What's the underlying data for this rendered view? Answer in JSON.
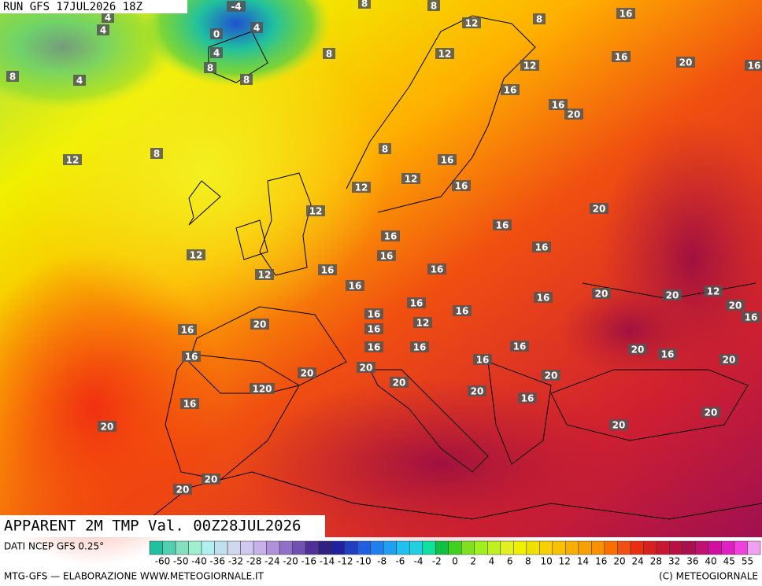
{
  "header": {
    "run": "RUN GFS 17JUL2026 18Z",
    "title": "APPARENT 2M TMP Val. 00Z28JUL2026"
  },
  "map": {
    "labels": [
      "-4",
      "4",
      "4",
      "0",
      "4",
      "4",
      "8",
      "8",
      "4",
      "8",
      "8",
      "8",
      "8",
      "8",
      "16",
      "12",
      "12",
      "16",
      "12",
      "20",
      "16",
      "16",
      "16",
      "20",
      "8",
      "12",
      "8",
      "16",
      "12",
      "12",
      "16",
      "12",
      "20",
      "16",
      "16",
      "12",
      "16",
      "16",
      "12",
      "16",
      "16",
      "16",
      "16",
      "16",
      "20",
      "20",
      "12",
      "20",
      "16",
      "16",
      "16",
      "12",
      "16",
      "20",
      "16",
      "16",
      "16",
      "16",
      "20",
      "16",
      "20",
      "16",
      "20",
      "16",
      "20",
      "20",
      "20",
      "120",
      "20",
      "16",
      "16",
      "20",
      "20",
      "20",
      "20",
      "20"
    ]
  },
  "legend": {
    "source": "DATI NCEP GFS 0.25°",
    "ticks": [
      "-60",
      "-50",
      "-40",
      "-36",
      "-32",
      "-28",
      "-24",
      "-20",
      "-16",
      "-14",
      "-12",
      "-10",
      "-8",
      "-6",
      "-4",
      "-2",
      "0",
      "2",
      "4",
      "6",
      "8",
      "10",
      "12",
      "14",
      "16",
      "20",
      "24",
      "28",
      "32",
      "36",
      "40",
      "45",
      "55"
    ]
  },
  "footer": {
    "credit": "MTG-GFS — ELABORAZIONE WWW.METEOGIORNALE.IT",
    "copyright": "(C) METEOGIORNALE"
  }
}
